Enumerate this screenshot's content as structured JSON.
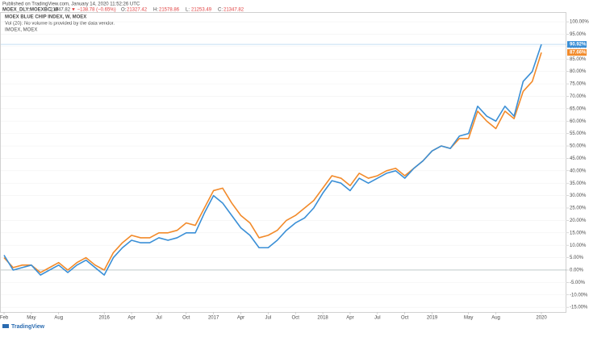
{
  "header": {
    "published": "Published on TradingView.com, January 14, 2020 11:52:26 UTC",
    "symbol": "MOEX_DLY:MOEXBC, W",
    "last": "21347.82",
    "change": "▼ −138.78 (−0.65%)",
    "ohlc": [
      [
        "O:",
        "21327.42"
      ],
      [
        "H:",
        "21578.86"
      ],
      [
        "L:",
        "21253.49"
      ],
      [
        "C:",
        "21347.82"
      ]
    ]
  },
  "legend_lines": [
    "MOEX BLUE CHIP INDEX, W, MOEX",
    "Vol (20): No volume is provided by the data vendor.",
    "IMOEX, MOEX"
  ],
  "footer": "TradingView",
  "chart_data": {
    "type": "line",
    "categories": [
      "Feb",
      null,
      null,
      "May",
      null,
      null,
      "Aug",
      null,
      null,
      null,
      null,
      "2016",
      null,
      null,
      "Apr",
      null,
      null,
      "Jul",
      null,
      null,
      "Oct",
      null,
      null,
      "2017",
      null,
      null,
      "Apr",
      null,
      null,
      "Jul",
      null,
      null,
      "Oct",
      null,
      null,
      "2018",
      null,
      null,
      "Apr",
      null,
      null,
      "Jul",
      null,
      null,
      "Oct",
      null,
      null,
      "2019",
      null,
      null,
      null,
      "May",
      null,
      null,
      "Aug",
      null,
      null,
      null,
      null,
      "2020"
    ],
    "series": [
      {
        "name": "IMOEX, MOEX",
        "color": "#f28a2a",
        "values": [
          5,
          1,
          2,
          2,
          -1,
          1,
          3,
          0,
          3,
          5,
          2,
          0,
          7,
          11,
          14,
          13,
          13,
          15,
          15,
          16,
          19,
          18,
          25,
          32,
          33,
          27,
          22,
          19,
          13,
          14,
          16,
          20,
          22,
          25,
          28,
          33,
          38,
          37,
          34,
          39,
          37,
          38,
          40,
          41,
          38,
          41,
          44,
          48,
          50,
          49,
          53,
          53,
          64,
          60,
          57,
          64,
          61,
          72,
          76,
          87.66
        ],
        "value_labels": [
          null,
          null,
          null,
          null,
          null,
          null,
          null,
          null,
          null,
          null,
          null,
          null,
          null,
          null,
          null,
          null,
          null,
          null,
          null,
          null,
          null,
          null,
          null,
          null,
          null,
          null,
          null,
          null,
          null,
          null,
          null,
          null,
          null,
          null,
          null,
          null,
          null,
          null,
          null,
          null,
          null,
          null,
          null,
          null,
          null,
          null,
          null,
          null,
          null,
          null,
          null,
          null,
          null,
          null,
          null,
          null,
          null,
          null,
          null,
          "87.66%"
        ]
      },
      {
        "name": "MOEX BLUE CHIP INDEX, W, MOEX",
        "color": "#3a8fd6",
        "values": [
          6,
          0,
          1,
          2,
          -2,
          0,
          2,
          -1,
          2,
          4,
          1,
          -2,
          5,
          9,
          12,
          11,
          11,
          13,
          12,
          13,
          15,
          15,
          23,
          30,
          27,
          22,
          17,
          14,
          9,
          9,
          12,
          16,
          19,
          21,
          25,
          31,
          36,
          35,
          32,
          37,
          35,
          37,
          39,
          40,
          37,
          41,
          44,
          48,
          50,
          49,
          54,
          55,
          66,
          62,
          60,
          66,
          62,
          76,
          80,
          90.92
        ],
        "value_labels": [
          null,
          null,
          null,
          null,
          null,
          null,
          null,
          null,
          null,
          null,
          null,
          null,
          null,
          null,
          null,
          null,
          null,
          null,
          null,
          null,
          null,
          null,
          null,
          null,
          null,
          null,
          null,
          null,
          null,
          null,
          null,
          null,
          null,
          null,
          null,
          null,
          null,
          null,
          null,
          null,
          null,
          null,
          null,
          null,
          null,
          null,
          null,
          null,
          null,
          null,
          null,
          null,
          null,
          null,
          null,
          null,
          null,
          null,
          null,
          "90.92%"
        ]
      }
    ],
    "ylim": [
      -16.9,
      103.6
    ],
    "yticks": [
      {
        "value": -15,
        "label": "-15.00%"
      },
      {
        "value": -10,
        "label": "-10.00%"
      },
      {
        "value": -5,
        "label": "-5.00%"
      },
      {
        "value": 0,
        "label": "0.00%"
      },
      {
        "value": 5,
        "label": "5.00%"
      },
      {
        "value": 10,
        "label": "10.00%"
      },
      {
        "value": 15,
        "label": "15.00%"
      },
      {
        "value": 20,
        "label": "20.00%"
      },
      {
        "value": 25,
        "label": "25.00%"
      },
      {
        "value": 30,
        "label": "30.00%"
      },
      {
        "value": 35,
        "label": "35.00%"
      },
      {
        "value": 40,
        "label": "40.00%"
      },
      {
        "value": 45,
        "label": "45.00%"
      },
      {
        "value": 50,
        "label": "50.00%"
      },
      {
        "value": 55,
        "label": "55.00%"
      },
      {
        "value": 60,
        "label": "60.00%"
      },
      {
        "value": 65,
        "label": "65.00%"
      },
      {
        "value": 70,
        "label": "70.00%"
      },
      {
        "value": 75,
        "label": "75.00%"
      },
      {
        "value": 80,
        "label": "80.00%"
      },
      {
        "value": 85,
        "label": "85.00%"
      },
      {
        "value": 90,
        "label": "90.00%"
      },
      {
        "value": 95,
        "label": "95.00%"
      },
      {
        "value": 100,
        "label": "100.00%"
      }
    ],
    "grid": true
  }
}
